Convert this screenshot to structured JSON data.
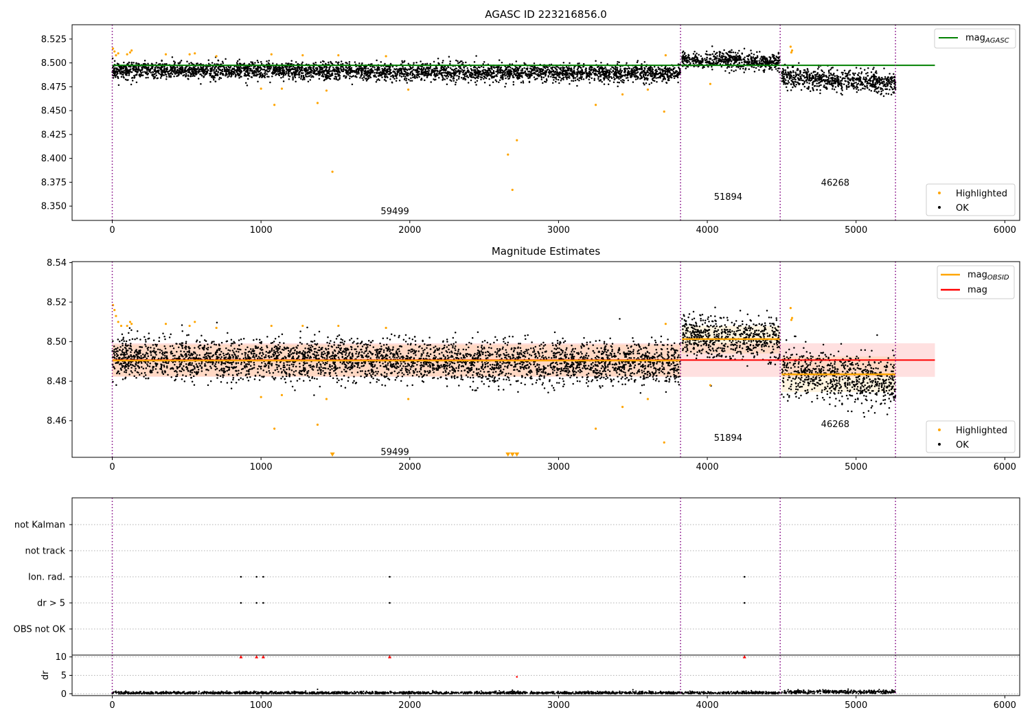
{
  "chart_data": [
    {
      "type": "scatter",
      "title": "AGASC ID 223216856.0",
      "xlim": [
        -270,
        6100
      ],
      "ylim": [
        8.335,
        8.54
      ],
      "x_ticks": [
        0,
        1000,
        2000,
        3000,
        4000,
        5000,
        6000
      ],
      "y_ticks": [
        8.35,
        8.375,
        8.4,
        8.425,
        8.45,
        8.475,
        8.5,
        8.525
      ],
      "y_tick_labels": [
        "8.350",
        "8.375",
        "8.400",
        "8.425",
        "8.450",
        "8.475",
        "8.500",
        "8.525"
      ],
      "grid": false,
      "obsid_boundaries": [
        0,
        3820,
        4490,
        5265
      ],
      "obsid_labels": [
        {
          "text": "59499",
          "x": 1900,
          "y": 8.345
        },
        {
          "text": "51894",
          "x": 4140,
          "y": 8.36
        },
        {
          "text": "46268",
          "x": 4860,
          "y": 8.375
        }
      ],
      "line": {
        "name": "mag_AGASC",
        "y": 8.4975,
        "x_range": [
          0,
          5530
        ],
        "color": "#008000"
      },
      "ok_segments": [
        {
          "x_range": [
            0,
            3820
          ],
          "start_mean": 8.4925,
          "end_mean": 8.489,
          "spread": 0.0045
        },
        {
          "x_range": [
            3830,
            4490
          ],
          "start_mean": 8.5035,
          "end_mean": 8.5005,
          "spread": 0.0045
        },
        {
          "x_range": [
            4500,
            5265
          ],
          "start_mean": 8.4855,
          "end_mean": 8.4785,
          "spread": 0.0055
        }
      ],
      "highlighted_points": [
        [
          5,
          8.515
        ],
        [
          15,
          8.512
        ],
        [
          25,
          8.508
        ],
        [
          40,
          8.51
        ],
        [
          100,
          8.509
        ],
        [
          120,
          8.511
        ],
        [
          130,
          8.513
        ],
        [
          360,
          8.509
        ],
        [
          520,
          8.509
        ],
        [
          555,
          8.51
        ],
        [
          700,
          8.507
        ],
        [
          1000,
          8.473
        ],
        [
          1070,
          8.509
        ],
        [
          1090,
          8.456
        ],
        [
          1140,
          8.473
        ],
        [
          1280,
          8.508
        ],
        [
          1380,
          8.458
        ],
        [
          1440,
          8.471
        ],
        [
          1480,
          8.386
        ],
        [
          1520,
          8.508
        ],
        [
          1840,
          8.507
        ],
        [
          1990,
          8.472
        ],
        [
          2660,
          8.404
        ],
        [
          2690,
          8.367
        ],
        [
          2720,
          8.419
        ],
        [
          3250,
          8.456
        ],
        [
          3430,
          8.467
        ],
        [
          3600,
          8.472
        ],
        [
          3710,
          8.449
        ],
        [
          3720,
          8.508
        ],
        [
          4020,
          8.478
        ],
        [
          4560,
          8.517
        ],
        [
          4565,
          8.511
        ],
        [
          4570,
          8.513
        ]
      ],
      "legends": [
        {
          "position": "top-right",
          "entries": [
            {
              "label": "mag",
              "sub": "AGASC",
              "color": "#008000",
              "kind": "line"
            }
          ]
        },
        {
          "position": "bottom-right",
          "entries": [
            {
              "label": "Highlighted",
              "color": "#ffa500",
              "kind": "dot"
            },
            {
              "label": "OK",
              "color": "#000000",
              "kind": "dot"
            }
          ]
        }
      ]
    },
    {
      "type": "scatter",
      "title": "Magnitude Estimates",
      "xlim": [
        -270,
        6100
      ],
      "ylim": [
        8.4415,
        8.5405
      ],
      "x_ticks": [
        0,
        1000,
        2000,
        3000,
        4000,
        5000,
        6000
      ],
      "y_ticks": [
        8.46,
        8.48,
        8.5,
        8.52,
        8.54
      ],
      "y_tick_labels": [
        "8.46",
        "8.48",
        "8.50",
        "8.52",
        "8.54"
      ],
      "grid": false,
      "obsid_boundaries": [
        0,
        3820,
        4490,
        5265
      ],
      "obsid_labels": [
        {
          "text": "59499",
          "x": 1900,
          "y": 8.4445
        },
        {
          "text": "51894",
          "x": 4140,
          "y": 8.4515
        },
        {
          "text": "46268",
          "x": 4860,
          "y": 8.4585
        }
      ],
      "mag_line": {
        "name": "mag",
        "y": 8.4907,
        "x_range": [
          0,
          5530
        ],
        "color": "#ff0000",
        "band": [
          8.4822,
          8.4992
        ]
      },
      "mag_obsid": [
        {
          "y": 8.4905,
          "x_range": [
            0,
            3820
          ],
          "band": [
            8.4825,
            8.4985
          ]
        },
        {
          "y": 8.5013,
          "x_range": [
            3830,
            4490
          ],
          "band": [
            8.494,
            8.508
          ]
        },
        {
          "y": 8.4835,
          "x_range": [
            4500,
            5265
          ],
          "band": [
            8.4745,
            8.4925
          ]
        }
      ],
      "ok_segments": [
        {
          "x_range": [
            0,
            3820
          ],
          "start_mean": 8.4915,
          "end_mean": 8.489,
          "spread": 0.0052
        },
        {
          "x_range": [
            3830,
            4490
          ],
          "start_mean": 8.5035,
          "end_mean": 8.5005,
          "spread": 0.0052
        },
        {
          "x_range": [
            4500,
            5265
          ],
          "start_mean": 8.4855,
          "end_mean": 8.4785,
          "spread": 0.0062
        }
      ],
      "highlighted_points": [
        [
          5,
          8.5185
        ],
        [
          15,
          8.516
        ],
        [
          25,
          8.513
        ],
        [
          40,
          8.51
        ],
        [
          60,
          8.508
        ],
        [
          100,
          8.508
        ],
        [
          120,
          8.51
        ],
        [
          130,
          8.509
        ],
        [
          360,
          8.509
        ],
        [
          520,
          8.508
        ],
        [
          555,
          8.51
        ],
        [
          700,
          8.507
        ],
        [
          1000,
          8.472
        ],
        [
          1070,
          8.508
        ],
        [
          1090,
          8.456
        ],
        [
          1140,
          8.473
        ],
        [
          1280,
          8.508
        ],
        [
          1380,
          8.458
        ],
        [
          1440,
          8.471
        ],
        [
          1520,
          8.508
        ],
        [
          1840,
          8.507
        ],
        [
          1990,
          8.471
        ],
        [
          3250,
          8.456
        ],
        [
          3430,
          8.467
        ],
        [
          3600,
          8.471
        ],
        [
          3710,
          8.449
        ],
        [
          3720,
          8.509
        ],
        [
          4020,
          8.478
        ],
        [
          4560,
          8.517
        ],
        [
          4565,
          8.511
        ],
        [
          4570,
          8.512
        ]
      ],
      "offscale_markers_x": [
        1480,
        2660,
        2690,
        2720
      ],
      "legends": [
        {
          "position": "top-right",
          "entries": [
            {
              "label": "mag",
              "sub": "OBSID",
              "color": "#ffa500",
              "kind": "line"
            },
            {
              "label": "mag",
              "sub": "",
              "color": "#ff0000",
              "kind": "line"
            }
          ]
        },
        {
          "position": "bottom-right",
          "entries": [
            {
              "label": "Highlighted",
              "color": "#ffa500",
              "kind": "dot"
            },
            {
              "label": "OK",
              "color": "#000000",
              "kind": "dot"
            }
          ]
        }
      ]
    },
    {
      "type": "scatter",
      "title": "",
      "xlim": [
        -270,
        6100
      ],
      "categories": [
        "OBS not OK",
        "dr > 5",
        "Ion. rad.",
        "not track",
        "not Kalman"
      ],
      "grid": true,
      "obsid_boundaries": [
        0,
        3820,
        4490,
        5265
      ],
      "flag_points": [
        {
          "category": "Ion. rad.",
          "x": [
            865,
            970,
            1015,
            1865,
            4250
          ]
        },
        {
          "category": "dr > 5",
          "x": [
            865,
            970,
            1015,
            1865,
            4250
          ]
        }
      ]
    },
    {
      "type": "scatter",
      "title": "",
      "xlim": [
        -270,
        6100
      ],
      "ylim": [
        -0.5,
        10.5
      ],
      "ylabel": "dr",
      "x_ticks": [
        0,
        1000,
        2000,
        3000,
        4000,
        5000,
        6000
      ],
      "y_ticks": [
        0,
        5,
        10
      ],
      "grid": true,
      "obsid_boundaries": [
        0,
        3820,
        4490,
        5265
      ],
      "dr_baseline": [
        {
          "x_range": [
            0,
            4490
          ],
          "mean": 0.25,
          "spread": 0.18
        },
        {
          "x_range": [
            4500,
            5265
          ],
          "mean": 0.5,
          "spread": 0.25
        }
      ],
      "dr_outliers": [
        [
          1380,
          1.2
        ],
        [
          2690,
          1.0
        ],
        [
          3500,
          1.1
        ]
      ],
      "clipped_markers_x": [
        865,
        970,
        1015,
        1865,
        4250
      ],
      "red_point": [
        2720,
        4.6
      ]
    }
  ]
}
